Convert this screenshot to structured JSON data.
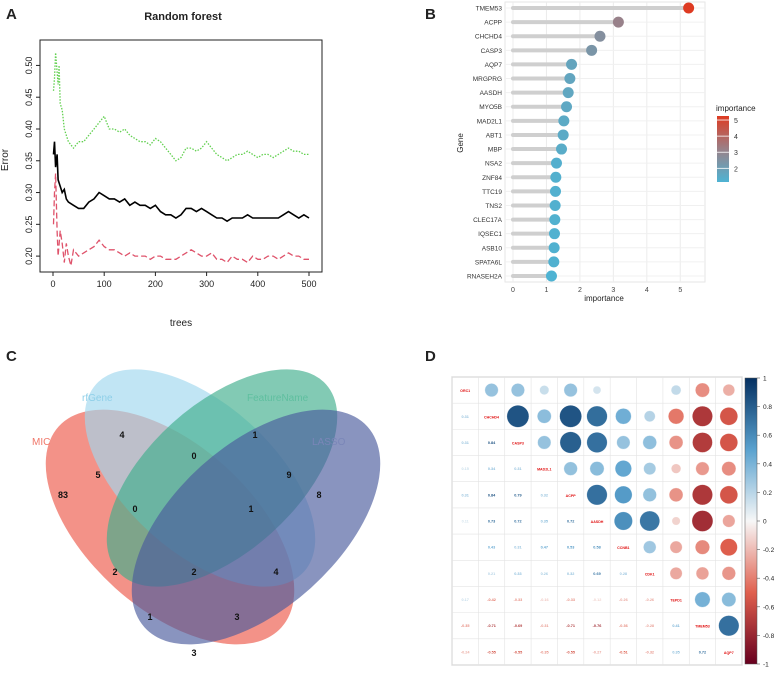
{
  "panels": {
    "A": "A",
    "B": "B",
    "C": "C",
    "D": "D"
  },
  "chart_data": [
    {
      "id": "A",
      "type": "line",
      "title": "Random forest",
      "xlabel": "trees",
      "ylabel": "Error",
      "xlim": [
        0,
        500
      ],
      "ylim": [
        0.175,
        0.54
      ],
      "xticks": [
        0,
        100,
        200,
        300,
        400,
        500
      ],
      "yticks": [
        0.2,
        0.25,
        0.3,
        0.35,
        0.4,
        0.45,
        0.5
      ],
      "series": [
        {
          "style": "solid",
          "color": "#000000",
          "points": [
            [
              1,
              0.36
            ],
            [
              3,
              0.38
            ],
            [
              5,
              0.34
            ],
            [
              8,
              0.36
            ],
            [
              10,
              0.32
            ],
            [
              14,
              0.31
            ],
            [
              18,
              0.3
            ],
            [
              22,
              0.305
            ],
            [
              26,
              0.29
            ],
            [
              30,
              0.285
            ],
            [
              40,
              0.28
            ],
            [
              50,
              0.275
            ],
            [
              60,
              0.275
            ],
            [
              70,
              0.285
            ],
            [
              80,
              0.29
            ],
            [
              90,
              0.3
            ],
            [
              100,
              0.295
            ],
            [
              110,
              0.29
            ],
            [
              120,
              0.29
            ],
            [
              130,
              0.285
            ],
            [
              140,
              0.29
            ],
            [
              150,
              0.28
            ],
            [
              160,
              0.285
            ],
            [
              170,
              0.28
            ],
            [
              180,
              0.28
            ],
            [
              190,
              0.275
            ],
            [
              200,
              0.28
            ],
            [
              210,
              0.27
            ],
            [
              220,
              0.265
            ],
            [
              230,
              0.265
            ],
            [
              240,
              0.26
            ],
            [
              250,
              0.265
            ],
            [
              260,
              0.275
            ],
            [
              270,
              0.275
            ],
            [
              280,
              0.27
            ],
            [
              290,
              0.275
            ],
            [
              300,
              0.27
            ],
            [
              310,
              0.265
            ],
            [
              320,
              0.26
            ],
            [
              330,
              0.26
            ],
            [
              340,
              0.255
            ],
            [
              350,
              0.26
            ],
            [
              360,
              0.26
            ],
            [
              370,
              0.26
            ],
            [
              380,
              0.265
            ],
            [
              390,
              0.26
            ],
            [
              400,
              0.26
            ],
            [
              410,
              0.26
            ],
            [
              420,
              0.26
            ],
            [
              430,
              0.26
            ],
            [
              440,
              0.26
            ],
            [
              450,
              0.265
            ],
            [
              460,
              0.27
            ],
            [
              470,
              0.265
            ],
            [
              480,
              0.26
            ],
            [
              490,
              0.265
            ],
            [
              500,
              0.26
            ]
          ]
        },
        {
          "style": "dashed",
          "color": "#df536b",
          "points": [
            [
              1,
              0.25
            ],
            [
              3,
              0.3
            ],
            [
              5,
              0.33
            ],
            [
              8,
              0.24
            ],
            [
              10,
              0.2
            ],
            [
              14,
              0.24
            ],
            [
              18,
              0.22
            ],
            [
              22,
              0.19
            ],
            [
              26,
              0.22
            ],
            [
              30,
              0.2
            ],
            [
              35,
              0.185
            ],
            [
              40,
              0.21
            ],
            [
              50,
              0.2
            ],
            [
              60,
              0.205
            ],
            [
              70,
              0.21
            ],
            [
              80,
              0.215
            ],
            [
              90,
              0.225
            ],
            [
              100,
              0.215
            ],
            [
              110,
              0.21
            ],
            [
              120,
              0.21
            ],
            [
              130,
              0.205
            ],
            [
              140,
              0.2
            ],
            [
              150,
              0.205
            ],
            [
              160,
              0.2
            ],
            [
              170,
              0.2
            ],
            [
              180,
              0.2
            ],
            [
              190,
              0.195
            ],
            [
              200,
              0.2
            ],
            [
              210,
              0.2
            ],
            [
              220,
              0.195
            ],
            [
              230,
              0.195
            ],
            [
              240,
              0.195
            ],
            [
              250,
              0.2
            ],
            [
              260,
              0.205
            ],
            [
              270,
              0.21
            ],
            [
              280,
              0.205
            ],
            [
              290,
              0.2
            ],
            [
              300,
              0.2
            ],
            [
              310,
              0.205
            ],
            [
              320,
              0.195
            ],
            [
              330,
              0.195
            ],
            [
              340,
              0.19
            ],
            [
              350,
              0.2
            ],
            [
              360,
              0.195
            ],
            [
              370,
              0.195
            ],
            [
              380,
              0.19
            ],
            [
              390,
              0.2
            ],
            [
              400,
              0.195
            ],
            [
              410,
              0.195
            ],
            [
              420,
              0.2
            ],
            [
              430,
              0.2
            ],
            [
              440,
              0.195
            ],
            [
              450,
              0.2
            ],
            [
              460,
              0.205
            ],
            [
              470,
              0.2
            ],
            [
              480,
              0.2
            ],
            [
              490,
              0.195
            ],
            [
              500,
              0.195
            ]
          ]
        },
        {
          "style": "dotted",
          "color": "#61d04f",
          "points": [
            [
              1,
              0.46
            ],
            [
              3,
              0.48
            ],
            [
              5,
              0.52
            ],
            [
              7,
              0.5
            ],
            [
              10,
              0.47
            ],
            [
              12,
              0.5
            ],
            [
              14,
              0.44
            ],
            [
              18,
              0.43
            ],
            [
              22,
              0.4
            ],
            [
              26,
              0.39
            ],
            [
              30,
              0.38
            ],
            [
              40,
              0.37
            ],
            [
              50,
              0.38
            ],
            [
              60,
              0.38
            ],
            [
              70,
              0.39
            ],
            [
              80,
              0.4
            ],
            [
              90,
              0.41
            ],
            [
              100,
              0.42
            ],
            [
              110,
              0.4
            ],
            [
              120,
              0.4
            ],
            [
              130,
              0.395
            ],
            [
              140,
              0.4
            ],
            [
              150,
              0.39
            ],
            [
              160,
              0.385
            ],
            [
              170,
              0.38
            ],
            [
              180,
              0.38
            ],
            [
              190,
              0.375
            ],
            [
              200,
              0.385
            ],
            [
              210,
              0.38
            ],
            [
              220,
              0.37
            ],
            [
              230,
              0.36
            ],
            [
              240,
              0.35
            ],
            [
              250,
              0.355
            ],
            [
              260,
              0.37
            ],
            [
              270,
              0.37
            ],
            [
              280,
              0.365
            ],
            [
              290,
              0.37
            ],
            [
              300,
              0.38
            ],
            [
              310,
              0.37
            ],
            [
              320,
              0.36
            ],
            [
              330,
              0.355
            ],
            [
              340,
              0.35
            ],
            [
              350,
              0.355
            ],
            [
              360,
              0.36
            ],
            [
              370,
              0.36
            ],
            [
              380,
              0.365
            ],
            [
              390,
              0.36
            ],
            [
              400,
              0.355
            ],
            [
              410,
              0.36
            ],
            [
              420,
              0.36
            ],
            [
              430,
              0.355
            ],
            [
              440,
              0.36
            ],
            [
              450,
              0.365
            ],
            [
              460,
              0.37
            ],
            [
              470,
              0.365
            ],
            [
              480,
              0.365
            ],
            [
              490,
              0.36
            ],
            [
              500,
              0.36
            ]
          ]
        }
      ]
    },
    {
      "id": "B",
      "type": "scatter",
      "xlabel": "importance",
      "ylabel": "Gene",
      "xlim": [
        0,
        5.5
      ],
      "xticks": [
        0,
        1,
        2,
        3,
        4,
        5
      ],
      "legend": {
        "title": "importance",
        "ticks": [
          2,
          3,
          4,
          5
        ],
        "position": "right"
      },
      "colormap": [
        "#4eb3d3",
        "#de3b22"
      ],
      "categories": [
        "TMEM53",
        "ACPP",
        "CHCHD4",
        "CASP3",
        "AQP7",
        "MRGPRG",
        "AASDH",
        "MYO5B",
        "MAD2L1",
        "ABT1",
        "MBP",
        "NSA2",
        "ZNF84",
        "TTC19",
        "TNS2",
        "CLEC17A",
        "IQSEC1",
        "ASB10",
        "SPATA6L",
        "RNASEH2A"
      ],
      "values": [
        5.25,
        3.15,
        2.6,
        2.35,
        1.75,
        1.7,
        1.65,
        1.6,
        1.52,
        1.5,
        1.45,
        1.3,
        1.28,
        1.27,
        1.26,
        1.25,
        1.24,
        1.23,
        1.22,
        1.15
      ]
    },
    {
      "id": "C",
      "type": "venn",
      "sets": [
        {
          "name": "MIC",
          "color": "#f0776a"
        },
        {
          "name": "rfGene",
          "color": "#9fd7ee"
        },
        {
          "name": "FeatureName",
          "color": "#5fbf9f"
        },
        {
          "name": "LASSO",
          "color": "#6e7bb0"
        }
      ],
      "regions": [
        "83",
        "4",
        "1",
        "8",
        "5",
        "0",
        "9",
        "0",
        "1",
        "2",
        "2",
        "4",
        "1",
        "3",
        "3"
      ]
    },
    {
      "id": "D",
      "type": "heatmap",
      "labels": [
        "ORC1",
        "CHCHD4",
        "CASP3",
        "MAD2L1",
        "ACPP",
        "AASDH",
        "CCNB1",
        "CDK1",
        "TEPD1",
        "TMEM53",
        "AQP7"
      ],
      "legend_ticks": [
        "1",
        "0.8",
        "0.6",
        "0.4",
        "0.2",
        "0",
        "-0.2",
        "-0.4",
        "-0.6",
        "-0.8",
        "-1"
      ],
      "lower_text": [
        [
          "0.31"
        ],
        [
          "0.31",
          "0.84"
        ],
        [
          "0.15",
          "0.34",
          "0.31"
        ],
        [
          "0.31",
          "0.84",
          "0.79",
          "0.32"
        ],
        [
          "0.11",
          "0.73",
          "0.72",
          "0.35",
          "0.72"
        ],
        [
          "",
          "0.43",
          "0.31",
          "0.47",
          "0.53",
          "0.58"
        ],
        [
          "",
          "0.21",
          "0.33",
          "0.26",
          "0.32",
          "0.69",
          "0.28"
        ],
        [
          "0.17",
          "-0.42",
          "-0.33",
          "-0.16",
          "-0.33",
          "-0.12",
          "-0.26",
          "-0.26"
        ],
        [
          "-0.35",
          "-0.71",
          "-0.69",
          "-0.31",
          "-0.71",
          "-0.76",
          "-0.36",
          "-0.28",
          "0.41"
        ],
        [
          "-0.24",
          "-0.55",
          "-0.55",
          "-0.35",
          "-0.55",
          "-0.27",
          "-0.51",
          "-0.32",
          "0.35",
          "0.72"
        ]
      ],
      "upper": [
        [
          0.31,
          0.31,
          0.15,
          0.31,
          0.11,
          0,
          0,
          0.17,
          -0.35,
          -0.24
        ],
        [
          0.84,
          0.34,
          0.84,
          0.73,
          0.43,
          0.21,
          -0.42,
          -0.71,
          -0.55
        ],
        [
          0.31,
          0.79,
          0.72,
          0.31,
          0.33,
          -0.33,
          -0.69,
          -0.55
        ],
        [
          0.32,
          0.35,
          0.47,
          0.26,
          -0.16,
          -0.31,
          -0.35
        ],
        [
          0.72,
          0.53,
          0.32,
          -0.33,
          -0.71,
          -0.55
        ],
        [
          0.58,
          0.69,
          -0.12,
          -0.76,
          -0.27
        ],
        [
          0.28,
          -0.26,
          -0.36,
          -0.51
        ],
        [
          -0.26,
          -0.28,
          -0.32
        ],
        [
          0.41,
          0.35
        ],
        [
          0.72
        ]
      ]
    }
  ]
}
